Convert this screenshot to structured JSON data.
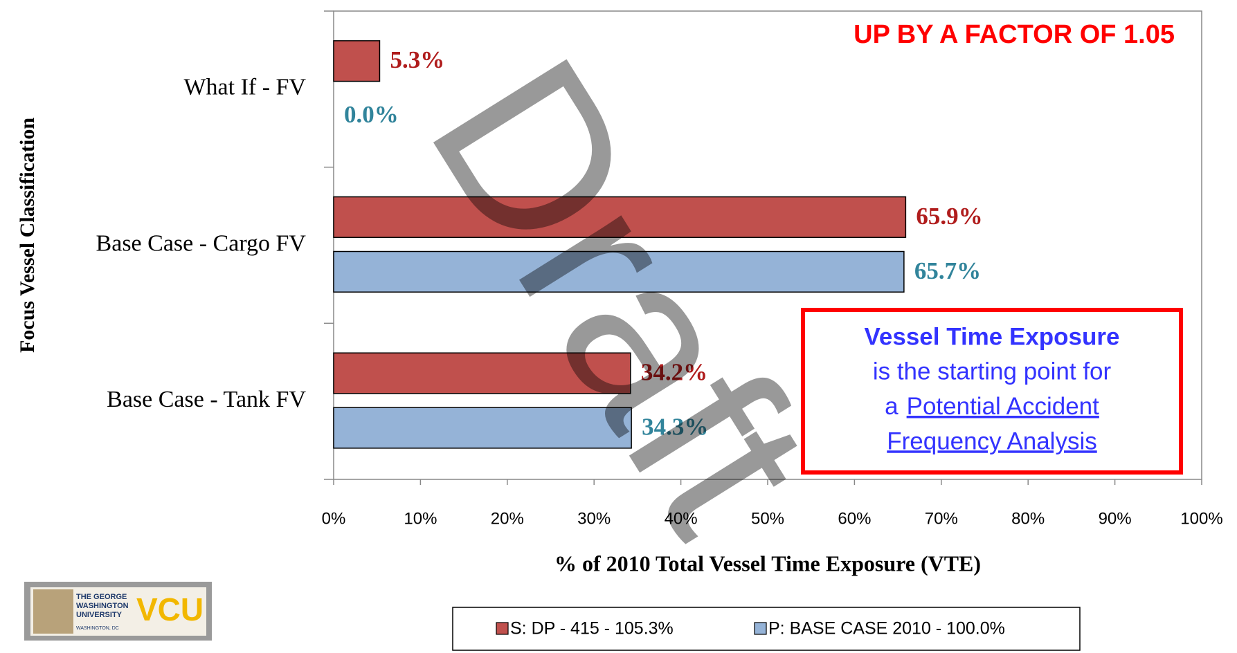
{
  "chart_data": {
    "type": "hbar",
    "annotation": "UP BY A FACTOR OF 1.05",
    "x_label": "% of 2010 Total Vessel Time Exposure (VTE)",
    "y_label": "Focus Vessel Classification",
    "categories": [
      "What If - FV",
      "Base Case - Cargo FV",
      "Base Case - Tank FV"
    ],
    "series": [
      {
        "name": "S: DP - 415  - 105.3%",
        "color": "#c0504d",
        "label_color": "#b01c1c",
        "values": [
          5.3,
          65.9,
          34.2
        ],
        "value_labels": [
          "5.3%",
          "65.9%",
          "34.2%"
        ]
      },
      {
        "name": "P: BASE CASE 2010  - 100.0%",
        "color": "#95b3d7",
        "label_color": "#31849b",
        "values": [
          0.0,
          65.7,
          34.3
        ],
        "value_labels": [
          "0.0%",
          "65.7%",
          "34.3%"
        ]
      }
    ],
    "xlim": [
      0,
      100
    ],
    "xticks": [
      {
        "value": 0,
        "label": "0%"
      },
      {
        "value": 10,
        "label": "10%"
      },
      {
        "value": 20,
        "label": "20%"
      },
      {
        "value": 30,
        "label": "30%"
      },
      {
        "value": 40,
        "label": "40%"
      },
      {
        "value": 50,
        "label": "50%"
      },
      {
        "value": 60,
        "label": "60%"
      },
      {
        "value": 70,
        "label": "70%"
      },
      {
        "value": 80,
        "label": "80%"
      },
      {
        "value": 90,
        "label": "90%"
      },
      {
        "value": 100,
        "label": "100%"
      }
    ],
    "grid": false,
    "legend": "bottom",
    "textbox": {
      "heading": "Vessel Time Exposure",
      "line": "is the starting point for",
      "prefix": "a",
      "link1": "Potential Accident",
      "link2": "Frequency Analysis"
    },
    "watermark": "Draft",
    "logo": {
      "university": [
        "THE GEORGE",
        "WASHINGTON",
        "UNIVERSITY"
      ],
      "place": "WASHINGTON, DC",
      "vcu": "VCU"
    }
  }
}
